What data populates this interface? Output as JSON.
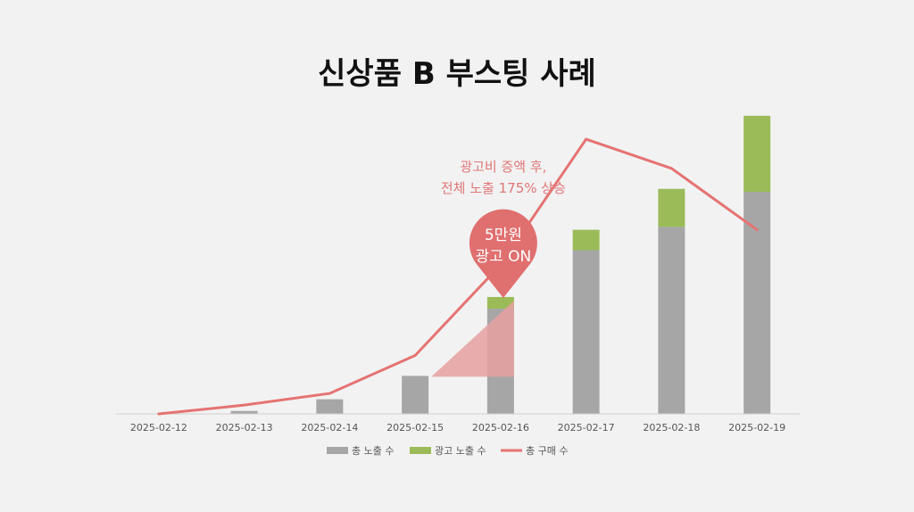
{
  "title": "신상품 B 부스팅 사례",
  "chart_data": {
    "type": "bar",
    "stacked": true,
    "categories": [
      "2025-02-12",
      "2025-02-13",
      "2025-02-14",
      "2025-02-15",
      "2025-02-16",
      "2025-02-17",
      "2025-02-18",
      "2025-02-19"
    ],
    "series": [
      {
        "name": "총 노출 수",
        "type": "bar",
        "color": "#a6a6a6",
        "values": [
          0,
          1,
          5,
          13,
          36,
          56,
          64,
          76
        ]
      },
      {
        "name": "광고 노출 수",
        "type": "bar",
        "color": "#9bbb59",
        "values": [
          0,
          0,
          0,
          0,
          4,
          7,
          13,
          26
        ]
      },
      {
        "name": "총 구매 수",
        "type": "line",
        "color": "#e57373",
        "values": [
          0,
          3,
          7,
          20,
          51,
          94,
          84,
          63
        ]
      }
    ],
    "ylim": [
      0,
      105
    ],
    "grid": false,
    "legend_position": "bottom",
    "annotations": {
      "note_lines": [
        "광고비 증액 후,",
        "전체 노출 175% 상승"
      ],
      "pin_lines": [
        "5만원",
        "광고 ON"
      ],
      "pin_category": "2025-02-16",
      "colors": {
        "note": "#e07676",
        "pin": "#e06f6f",
        "shadow": "#e8a0a0"
      }
    }
  }
}
